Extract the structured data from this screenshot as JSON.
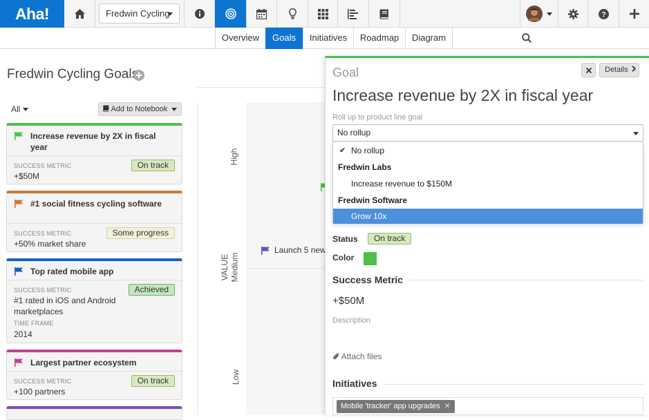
{
  "topbar": {
    "logo": "Aha!",
    "workspace": "Fredwin Cycling",
    "icons": [
      "home-icon",
      "info-icon",
      "goals-icon",
      "calendar-icon",
      "lightbulb-icon",
      "grid-icon",
      "roadmap-icon",
      "notebook-icon",
      "avatar",
      "gear-icon",
      "help-icon",
      "plus-icon"
    ]
  },
  "subnav": {
    "tabs": [
      {
        "label": "Overview"
      },
      {
        "label": "Goals",
        "active": true
      },
      {
        "label": "Initiatives"
      },
      {
        "label": "Roadmap"
      },
      {
        "label": "Diagram"
      }
    ]
  },
  "page": {
    "title": "Fredwin Cycling Goals",
    "filter": "All",
    "notebook_button": "Add to Notebook"
  },
  "goals": [
    {
      "title": "Increase revenue by 2X in fiscal year",
      "color": "#4cc04a",
      "metric_label": "SUCCESS METRIC",
      "metric": "+$50M",
      "status": "On track"
    },
    {
      "title": "#1 social fitness cycling software",
      "color": "#c8793a",
      "metric_label": "SUCCESS METRIC",
      "metric": "+50% market share",
      "status": "Some progress"
    },
    {
      "title": "Top rated mobile app",
      "color": "#1560bd",
      "metric_label": "SUCCESS METRIC",
      "metric": "#1 rated in iOS and Android marketplaces",
      "status": "Achieved",
      "timeframe_label": "TIME FRAME",
      "timeframe": "2014"
    },
    {
      "title": "Largest partner ecosystem",
      "color": "#c2418f",
      "metric_label": "SUCCESS METRIC",
      "metric": "+100 partners",
      "status": "On track"
    }
  ],
  "chart": {
    "axis_label": "VALUE",
    "levels": [
      "High",
      "Medium",
      "Low"
    ],
    "item_label": "Launch 5 new"
  },
  "panel": {
    "type_label": "Goal",
    "details_button": "Details",
    "title": "Increase revenue by 2X in fiscal year",
    "rollup_label": "Roll up to product line goal",
    "rollup_value": "No rollup",
    "dropdown": {
      "no_rollup": "No rollup",
      "group1": "Fredwin Labs",
      "group1_item": "Increase revenue to $150M",
      "group2": "Fredwin Software",
      "group2_item": "Grow 10x"
    },
    "status_label": "Status",
    "status": "On track",
    "color_label": "Color",
    "color": "#4cc04a",
    "success_metric_title": "Success Metric",
    "success_metric": "+$50M",
    "description_label": "Description",
    "attach_label": "Attach files",
    "initiatives_title": "Initiatives",
    "initiative_tag": "Mobile 'tracker' app upgrades"
  }
}
